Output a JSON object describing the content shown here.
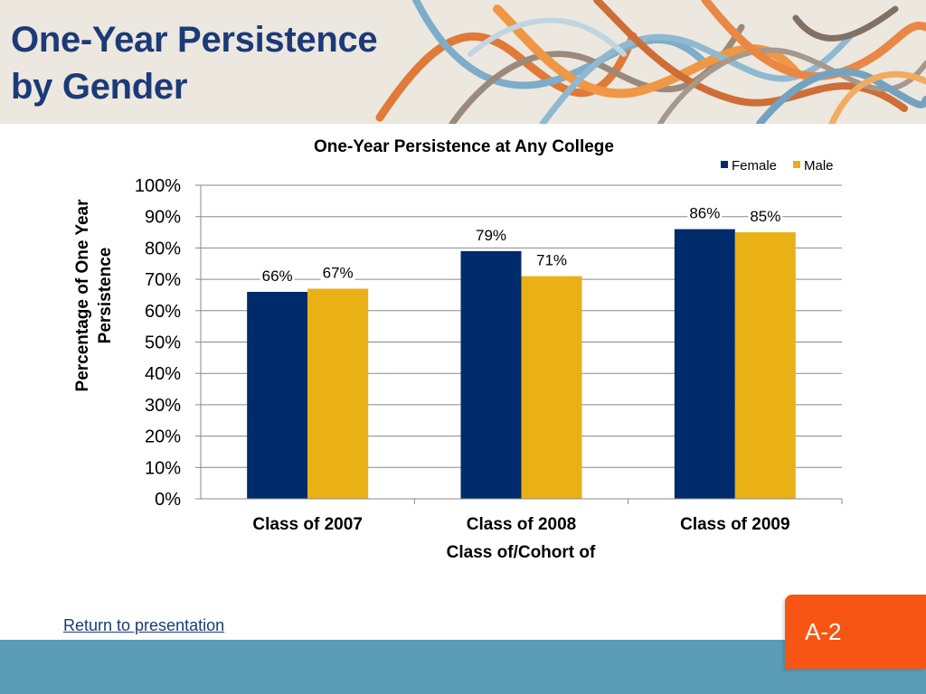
{
  "slide": {
    "title": "One-Year Persistence\nby Gender",
    "return_link": "Return to presentation",
    "page_label": "A-2"
  },
  "colors": {
    "title": "#1b3a78",
    "female": "#002b6b",
    "male": "#eab116",
    "badge": "#f75514",
    "footer": "#5b9db6",
    "header_bg": "#ece7df"
  },
  "chart_data": {
    "type": "bar",
    "title": "One-Year Persistence at Any College",
    "xlabel": "Class of/Cohort of",
    "ylabel": "Percentage of  One Year Persistence",
    "categories": [
      "Class of 2007",
      "Class of 2008",
      "Class of 2009"
    ],
    "series": [
      {
        "name": "Female",
        "values": [
          66,
          79,
          86
        ],
        "labels": [
          "66%",
          "79%",
          "86%"
        ]
      },
      {
        "name": "Male",
        "values": [
          67,
          71,
          85
        ],
        "labels": [
          "67%",
          "71%",
          "85%"
        ]
      }
    ],
    "ylim": [
      0,
      100
    ],
    "yticks": [
      "0%",
      "10%",
      "20%",
      "30%",
      "40%",
      "50%",
      "60%",
      "70%",
      "80%",
      "90%",
      "100%"
    ],
    "grid": true,
    "legend": "top-right"
  }
}
